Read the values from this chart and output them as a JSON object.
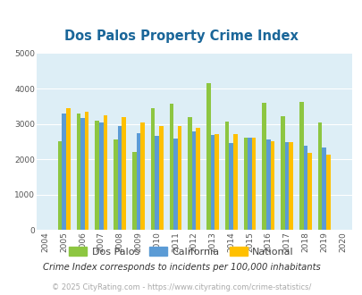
{
  "title": "Dos Palos Property Crime Index",
  "years": [
    2004,
    2005,
    2006,
    2007,
    2008,
    2009,
    2010,
    2011,
    2012,
    2013,
    2014,
    2015,
    2016,
    2017,
    2018,
    2019,
    2020
  ],
  "dos_palos": [
    null,
    2500,
    3300,
    3100,
    2550,
    2200,
    3450,
    3580,
    3200,
    4150,
    3060,
    2600,
    3600,
    3220,
    3620,
    3030,
    null
  ],
  "california": [
    null,
    3300,
    3175,
    3050,
    2950,
    2730,
    2650,
    2580,
    2780,
    2680,
    2460,
    2600,
    2560,
    2490,
    2390,
    2340,
    null
  ],
  "national": [
    null,
    3450,
    3350,
    3240,
    3200,
    3050,
    2950,
    2950,
    2890,
    2710,
    2710,
    2620,
    2510,
    2480,
    2180,
    2120,
    null
  ],
  "dos_palos_color": "#8dc641",
  "california_color": "#5b9bd5",
  "national_color": "#ffc000",
  "bg_color": "#ddeef6",
  "ylim": [
    0,
    5000
  ],
  "yticks": [
    0,
    1000,
    2000,
    3000,
    4000,
    5000
  ],
  "subtitle": "Crime Index corresponds to incidents per 100,000 inhabitants",
  "footer": "© 2025 CityRating.com - https://www.cityrating.com/crime-statistics/",
  "legend_labels": [
    "Dos Palos",
    "California",
    "National"
  ]
}
